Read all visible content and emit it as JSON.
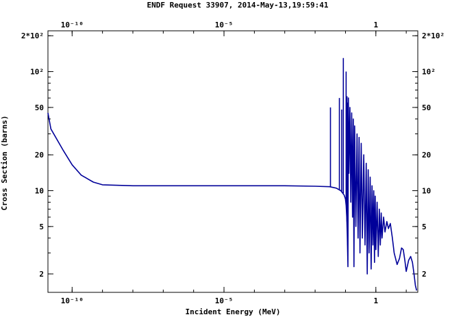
{
  "chart_data": {
    "type": "line",
    "title": "ENDF Request 33907, 2014-May-13,19:59:41",
    "xlabel": "Incident Energy (MeV)",
    "ylabel": "Cross Section (barns)",
    "x_scale": "log",
    "y_scale": "log",
    "xlim": [
      1.6e-11,
      24.0
    ],
    "ylim": [
      1.4,
      220.0
    ],
    "grid": false,
    "x_ticks": [
      {
        "value": 1e-10,
        "label": "10⁻¹⁰"
      },
      {
        "value": 1e-05,
        "label": "10⁻⁵"
      },
      {
        "value": 1,
        "label": "1"
      }
    ],
    "y_ticks": [
      {
        "value": 200,
        "label": "2*10²"
      },
      {
        "value": 100,
        "label": "10²"
      },
      {
        "value": 50,
        "label": "50"
      },
      {
        "value": 20,
        "label": "20"
      },
      {
        "value": 10,
        "label": "10"
      },
      {
        "value": 5,
        "label": "5"
      },
      {
        "value": 2,
        "label": "2"
      }
    ],
    "series": [
      {
        "color": "#000099",
        "points": [
          [
            1e-11,
            45
          ],
          [
            2e-11,
            33
          ],
          [
            5e-11,
            22
          ],
          [
            1e-10,
            16.5
          ],
          [
            2e-10,
            13.5
          ],
          [
            5e-10,
            11.8
          ],
          [
            1e-09,
            11.2
          ],
          [
            1e-08,
            11.0
          ],
          [
            1e-06,
            11.0
          ],
          [
            0.001,
            11.0
          ],
          [
            0.01,
            10.9
          ],
          [
            0.03,
            10.8
          ],
          [
            0.05,
            10.5
          ],
          [
            0.07,
            10.0
          ],
          [
            0.09,
            9.2
          ],
          [
            0.1,
            8.5
          ],
          [
            0.105,
            7.5
          ],
          [
            0.11,
            6.0
          ],
          [
            0.115,
            4.2
          ],
          [
            0.12,
            2.3
          ],
          [
            0.125,
            60
          ],
          [
            0.13,
            14
          ],
          [
            0.14,
            50
          ],
          [
            0.15,
            8
          ],
          [
            0.16,
            45
          ],
          [
            0.17,
            6
          ],
          [
            0.18,
            40
          ],
          [
            0.19,
            2.3
          ],
          [
            0.2,
            35
          ],
          [
            0.22,
            5
          ],
          [
            0.24,
            30
          ],
          [
            0.26,
            4
          ],
          [
            0.28,
            28
          ],
          [
            0.3,
            3
          ],
          [
            0.33,
            25
          ],
          [
            0.36,
            4
          ],
          [
            0.4,
            20
          ],
          [
            0.44,
            3.5
          ],
          [
            0.48,
            17
          ],
          [
            0.52,
            2.0
          ],
          [
            0.56,
            15
          ],
          [
            0.6,
            3.0
          ],
          [
            0.65,
            13
          ],
          [
            0.7,
            2.2
          ],
          [
            0.75,
            11
          ],
          [
            0.8,
            3.5
          ],
          [
            0.85,
            10
          ],
          [
            0.9,
            2.5
          ],
          [
            0.95,
            9
          ],
          [
            1.0,
            3.2
          ],
          [
            1.1,
            8
          ],
          [
            1.2,
            2.8
          ],
          [
            1.3,
            7
          ],
          [
            1.4,
            3.5
          ],
          [
            1.5,
            6.5
          ],
          [
            1.6,
            4.0
          ],
          [
            1.8,
            6.0
          ],
          [
            2.0,
            4.5
          ],
          [
            2.3,
            5.5
          ],
          [
            2.6,
            4.8
          ],
          [
            3.0,
            5.3
          ],
          [
            3.5,
            4.0
          ],
          [
            4.0,
            3.0
          ],
          [
            5.0,
            2.4
          ],
          [
            6.0,
            2.7
          ],
          [
            7.0,
            3.3
          ],
          [
            8.0,
            3.2
          ],
          [
            9.0,
            2.6
          ],
          [
            10.0,
            2.1
          ],
          [
            12.0,
            2.6
          ],
          [
            14.0,
            2.8
          ],
          [
            16.0,
            2.5
          ],
          [
            18.0,
            2.0
          ],
          [
            20.0,
            1.6
          ],
          [
            22.0,
            1.45
          ]
        ],
        "spikes": [
          [
            0.032,
            10.8,
            50
          ],
          [
            0.063,
            10.2,
            60
          ],
          [
            0.075,
            9.8,
            48
          ],
          [
            0.085,
            9.5,
            130
          ],
          [
            0.105,
            7.6,
            100
          ],
          [
            0.112,
            5.5,
            62
          ],
          [
            0.118,
            3.5,
            55
          ]
        ]
      }
    ]
  }
}
